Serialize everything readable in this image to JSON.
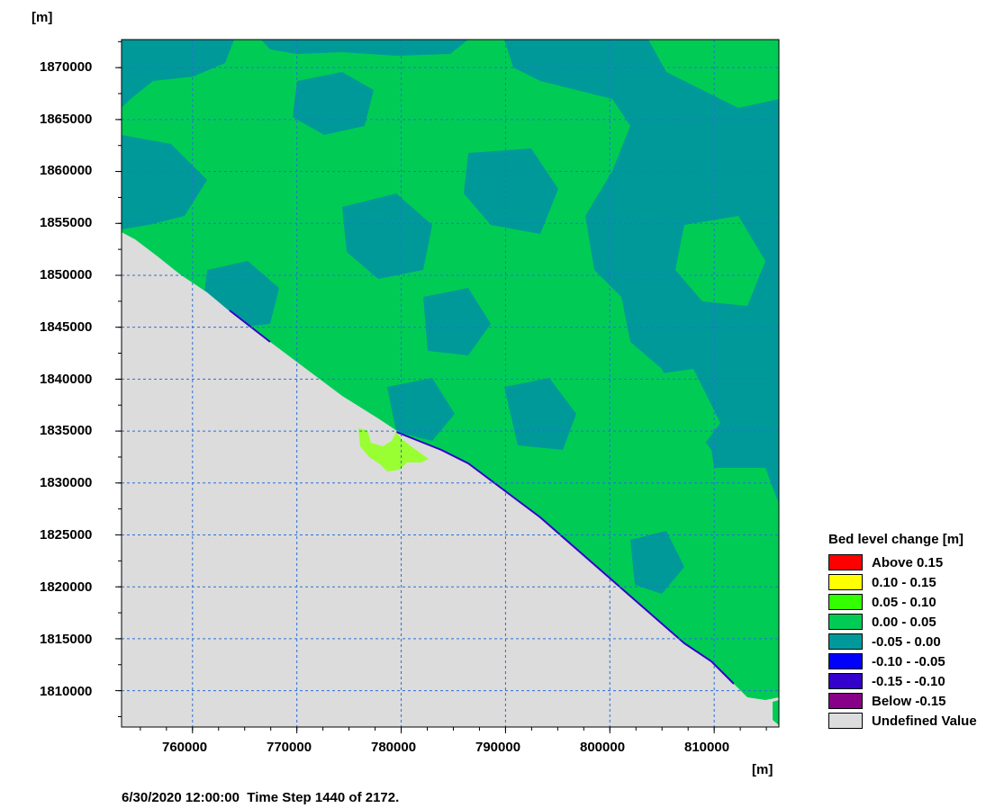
{
  "axes": {
    "y_unit": "[m]",
    "x_unit": "[m]",
    "x_range": [
      753200,
      816200
    ],
    "y_range": [
      1806500,
      1872700
    ],
    "y_ticks": [
      "1870000",
      "1865000",
      "1860000",
      "1855000",
      "1850000",
      "1845000",
      "1840000",
      "1835000",
      "1830000",
      "1825000",
      "1820000",
      "1815000",
      "1810000"
    ],
    "x_ticks": [
      "760000",
      "770000",
      "780000",
      "790000",
      "800000",
      "810000"
    ],
    "grid": true
  },
  "legend": {
    "title": "Bed level change [m]",
    "items": [
      {
        "label": "Above  0.15",
        "color": "#ff0000"
      },
      {
        "label": " 0.10 -  0.15",
        "color": "#ffff00"
      },
      {
        "label": " 0.05 -  0.10",
        "color": "#33ff00"
      },
      {
        "label": " 0.00 -  0.05",
        "color": "#00cc55"
      },
      {
        "label": "-0.05 -  0.00",
        "color": "#009999"
      },
      {
        "label": "-0.10 - -0.05",
        "color": "#0000ff"
      },
      {
        "label": "-0.15 - -0.10",
        "color": "#3300cc"
      },
      {
        "label": "Below -0.15",
        "color": "#880088"
      },
      {
        "label": "Undefined Value",
        "color": "#dcdcdc"
      }
    ]
  },
  "footer": {
    "timestamp": "6/30/2020 12:00:00",
    "timestep": "Time Step 1440 of 2172."
  }
}
